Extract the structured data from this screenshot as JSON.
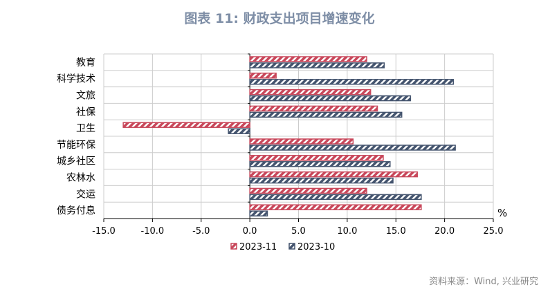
{
  "chart_data": {
    "type": "bar",
    "orientation": "horizontal",
    "title": "图表 11: 财政支出项目增速变化",
    "unit_label": "%",
    "categories": [
      "教育",
      "科学技术",
      "文旅",
      "社保",
      "卫生",
      "节能环保",
      "城乡社区",
      "农林水",
      "交运",
      "债务付息"
    ],
    "series": [
      {
        "name": "2023-11",
        "color": "#c8475a",
        "values": [
          12.0,
          2.7,
          12.4,
          13.1,
          -13.0,
          10.6,
          13.7,
          17.2,
          12.0,
          17.6
        ]
      },
      {
        "name": "2023-10",
        "color": "#44546e",
        "values": [
          13.8,
          20.9,
          16.5,
          15.6,
          -2.2,
          21.1,
          14.4,
          14.7,
          17.6,
          1.8
        ]
      }
    ],
    "xlim": [
      -15,
      25
    ],
    "xticks": [
      "-15.0",
      "-10.0",
      "-5.0",
      "0.0",
      "5.0",
      "10.0",
      "15.0",
      "20.0",
      "25.0"
    ],
    "grid": true,
    "legend": "bottom",
    "pattern": "hatched"
  },
  "source": "资料来源：Wind, 兴业研究"
}
